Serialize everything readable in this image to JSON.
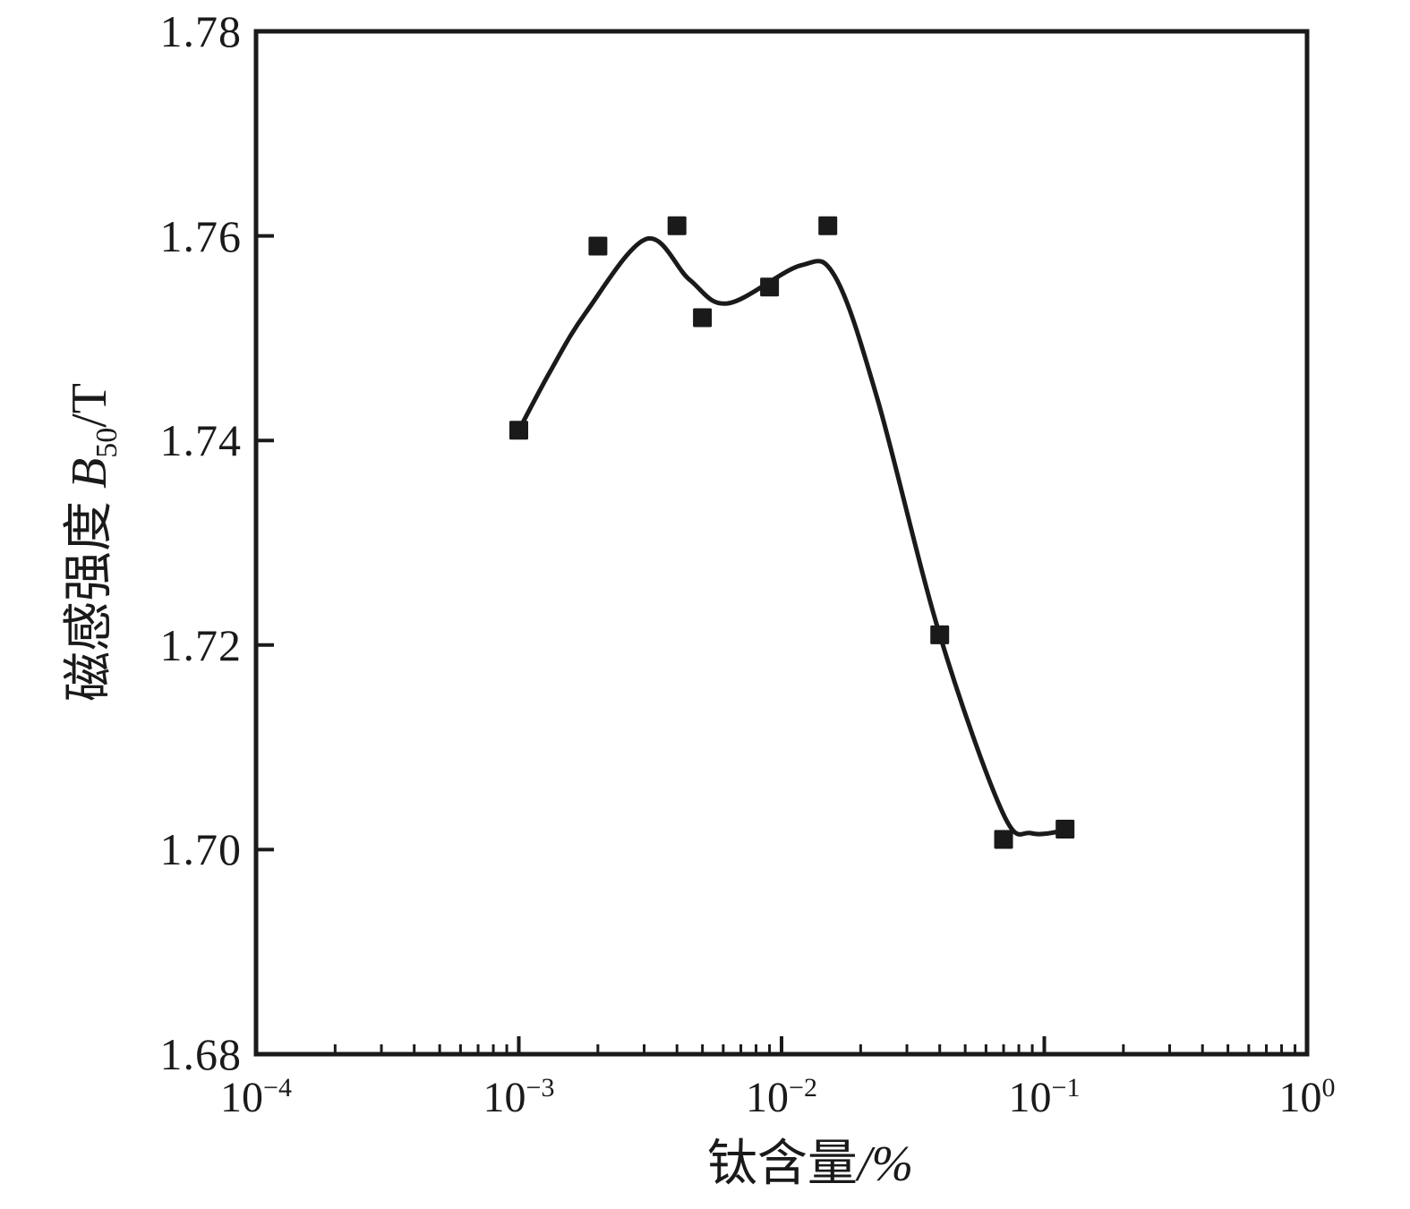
{
  "canvas": {
    "background": "#ffffff",
    "ink_color": "#1a1a1a"
  },
  "chart_data": {
    "type": "scatter",
    "title": "",
    "x_axis": {
      "label_prefix": "钛含量",
      "label_suffix": "/%",
      "scale": "log10",
      "min": 0.0001,
      "max": 1,
      "min_exponent": -4,
      "max_exponent": 0,
      "minor_ticks": "log decades 2-9",
      "ticks": [
        {
          "mantissa": "10",
          "exponent": "−4",
          "value": 0.0001
        },
        {
          "mantissa": "10",
          "exponent": "−3",
          "value": 0.001
        },
        {
          "mantissa": "10",
          "exponent": "−2",
          "value": 0.01
        },
        {
          "mantissa": "10",
          "exponent": "−1",
          "value": 0.1
        },
        {
          "mantissa": "10",
          "exponent": "0",
          "value": 1
        }
      ]
    },
    "y_axis": {
      "label_prefix": "磁感强度 ",
      "symbol": "B",
      "symbol_subscript": "50",
      "label_suffix": "/T",
      "scale": "linear",
      "min": 1.68,
      "max": 1.78,
      "tick_step": 0.02,
      "ticks": [
        {
          "label": "1.78",
          "value": 1.78
        },
        {
          "label": "1.76",
          "value": 1.76
        },
        {
          "label": "1.74",
          "value": 1.74
        },
        {
          "label": "1.72",
          "value": 1.72
        },
        {
          "label": "1.70",
          "value": 1.7
        },
        {
          "label": "1.68",
          "value": 1.68
        }
      ]
    },
    "grid": false,
    "legend": false,
    "series": [
      {
        "name": "points",
        "marker": "filled-square",
        "color": "#1a1a1a",
        "points": [
          [
            0.001,
            1.741
          ],
          [
            0.002,
            1.759
          ],
          [
            0.004,
            1.761
          ],
          [
            0.005,
            1.752
          ],
          [
            0.009,
            1.755
          ],
          [
            0.015,
            1.761
          ],
          [
            0.04,
            1.721
          ],
          [
            0.07,
            1.701
          ],
          [
            0.12,
            1.702
          ]
        ]
      }
    ],
    "fit_curve": {
      "color": "#1a1a1a",
      "anchors": [
        [
          0.000995,
          1.7409
        ],
        [
          0.00132,
          1.7468
        ],
        [
          0.0018,
          1.7525
        ],
        [
          0.00306,
          1.7597
        ],
        [
          0.00447,
          1.7557
        ],
        [
          0.00625,
          1.7534
        ],
        [
          0.0118,
          1.7571
        ],
        [
          0.016,
          1.756
        ],
        [
          0.0232,
          1.744
        ],
        [
          0.04,
          1.721
        ],
        [
          0.0695,
          1.7036
        ],
        [
          0.0893,
          1.7016
        ],
        [
          0.121,
          1.7019
        ]
      ]
    }
  }
}
